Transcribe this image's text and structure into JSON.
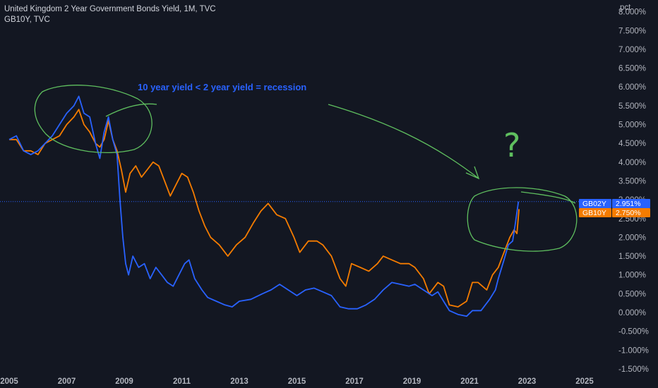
{
  "header": {
    "title": "United Kingdom 2 Year Government Bonds Yield, 1M, TVC",
    "subtitle": "GB10Y, TVC"
  },
  "colors": {
    "background": "#131722",
    "gb02y": "#2962ff",
    "gb10y": "#f57c00",
    "annotation_green": "#5fbf5f",
    "grid": "#1e222d",
    "axis_text": "#b2b5be"
  },
  "chart_data": {
    "type": "line",
    "ylabel": "pct",
    "ylim": [
      -1.6,
      8.2
    ],
    "xlim": [
      2005.0,
      2026.0
    ],
    "grid": false,
    "y_ticks": [
      "-1.500%",
      "-1.000%",
      "-0.500%",
      "0.000%",
      "0.500%",
      "1.000%",
      "1.500%",
      "2.000%",
      "2.500%",
      "3.000%",
      "3.500%",
      "4.000%",
      "4.500%",
      "5.000%",
      "5.500%",
      "6.000%",
      "6.500%",
      "7.000%",
      "7.500%",
      "8.000%"
    ],
    "y_tick_values": [
      -1.5,
      -1.0,
      -0.5,
      0.0,
      0.5,
      1.0,
      1.5,
      2.0,
      2.5,
      3.0,
      3.5,
      4.0,
      4.5,
      5.0,
      5.5,
      6.0,
      6.5,
      7.0,
      7.5,
      8.0
    ],
    "x_ticks": [
      "2005",
      "2007",
      "2009",
      "2011",
      "2013",
      "2015",
      "2017",
      "2019",
      "2021",
      "2023",
      "2025"
    ],
    "x_tick_values": [
      2005,
      2007,
      2009,
      2011,
      2013,
      2015,
      2017,
      2019,
      2021,
      2023,
      2025
    ],
    "series": [
      {
        "name": "GB02Y",
        "last_label": "2.951%",
        "points": [
          [
            2005.0,
            4.6
          ],
          [
            2005.25,
            4.7
          ],
          [
            2005.5,
            4.3
          ],
          [
            2005.75,
            4.2
          ],
          [
            2006.0,
            4.3
          ],
          [
            2006.25,
            4.5
          ],
          [
            2006.5,
            4.7
          ],
          [
            2006.75,
            5.0
          ],
          [
            2007.0,
            5.3
          ],
          [
            2007.25,
            5.5
          ],
          [
            2007.42,
            5.75
          ],
          [
            2007.6,
            5.3
          ],
          [
            2007.8,
            5.2
          ],
          [
            2008.0,
            4.5
          ],
          [
            2008.15,
            4.1
          ],
          [
            2008.3,
            4.8
          ],
          [
            2008.45,
            5.2
          ],
          [
            2008.6,
            4.6
          ],
          [
            2008.75,
            4.2
          ],
          [
            2008.85,
            3.0
          ],
          [
            2008.95,
            2.0
          ],
          [
            2009.05,
            1.3
          ],
          [
            2009.15,
            1.0
          ],
          [
            2009.3,
            1.5
          ],
          [
            2009.5,
            1.2
          ],
          [
            2009.7,
            1.3
          ],
          [
            2009.9,
            0.9
          ],
          [
            2010.1,
            1.2
          ],
          [
            2010.3,
            1.0
          ],
          [
            2010.5,
            0.8
          ],
          [
            2010.7,
            0.7
          ],
          [
            2010.9,
            1.0
          ],
          [
            2011.1,
            1.3
          ],
          [
            2011.25,
            1.4
          ],
          [
            2011.45,
            0.9
          ],
          [
            2011.7,
            0.6
          ],
          [
            2011.9,
            0.4
          ],
          [
            2012.2,
            0.3
          ],
          [
            2012.5,
            0.2
          ],
          [
            2012.75,
            0.15
          ],
          [
            2013.0,
            0.3
          ],
          [
            2013.4,
            0.35
          ],
          [
            2013.8,
            0.5
          ],
          [
            2014.1,
            0.6
          ],
          [
            2014.4,
            0.75
          ],
          [
            2014.7,
            0.6
          ],
          [
            2015.0,
            0.45
          ],
          [
            2015.3,
            0.6
          ],
          [
            2015.6,
            0.65
          ],
          [
            2015.9,
            0.55
          ],
          [
            2016.2,
            0.45
          ],
          [
            2016.5,
            0.15
          ],
          [
            2016.8,
            0.1
          ],
          [
            2017.1,
            0.1
          ],
          [
            2017.4,
            0.2
          ],
          [
            2017.7,
            0.35
          ],
          [
            2018.0,
            0.6
          ],
          [
            2018.3,
            0.8
          ],
          [
            2018.6,
            0.75
          ],
          [
            2018.9,
            0.7
          ],
          [
            2019.1,
            0.75
          ],
          [
            2019.4,
            0.6
          ],
          [
            2019.7,
            0.45
          ],
          [
            2019.9,
            0.55
          ],
          [
            2020.1,
            0.3
          ],
          [
            2020.3,
            0.05
          ],
          [
            2020.6,
            -0.05
          ],
          [
            2020.9,
            -0.1
          ],
          [
            2021.1,
            0.05
          ],
          [
            2021.4,
            0.05
          ],
          [
            2021.7,
            0.35
          ],
          [
            2021.9,
            0.6
          ],
          [
            2022.0,
            0.9
          ],
          [
            2022.2,
            1.4
          ],
          [
            2022.35,
            1.8
          ],
          [
            2022.5,
            1.9
          ],
          [
            2022.6,
            2.4
          ],
          [
            2022.7,
            2.951
          ]
        ]
      },
      {
        "name": "GB10Y",
        "last_label": "2.750%",
        "points": [
          [
            2005.0,
            4.6
          ],
          [
            2005.25,
            4.6
          ],
          [
            2005.5,
            4.3
          ],
          [
            2005.75,
            4.3
          ],
          [
            2006.0,
            4.2
          ],
          [
            2006.25,
            4.5
          ],
          [
            2006.5,
            4.6
          ],
          [
            2006.75,
            4.7
          ],
          [
            2007.0,
            5.0
          ],
          [
            2007.25,
            5.2
          ],
          [
            2007.42,
            5.4
          ],
          [
            2007.6,
            5.0
          ],
          [
            2007.8,
            4.8
          ],
          [
            2008.0,
            4.5
          ],
          [
            2008.15,
            4.4
          ],
          [
            2008.3,
            4.6
          ],
          [
            2008.45,
            5.1
          ],
          [
            2008.6,
            4.6
          ],
          [
            2008.75,
            4.3
          ],
          [
            2008.9,
            3.8
          ],
          [
            2009.05,
            3.2
          ],
          [
            2009.2,
            3.7
          ],
          [
            2009.4,
            3.9
          ],
          [
            2009.6,
            3.6
          ],
          [
            2009.8,
            3.8
          ],
          [
            2010.0,
            4.0
          ],
          [
            2010.2,
            3.9
          ],
          [
            2010.4,
            3.5
          ],
          [
            2010.6,
            3.1
          ],
          [
            2010.8,
            3.4
          ],
          [
            2011.0,
            3.7
          ],
          [
            2011.2,
            3.6
          ],
          [
            2011.4,
            3.2
          ],
          [
            2011.6,
            2.7
          ],
          [
            2011.8,
            2.3
          ],
          [
            2012.0,
            2.0
          ],
          [
            2012.3,
            1.8
          ],
          [
            2012.6,
            1.5
          ],
          [
            2012.9,
            1.8
          ],
          [
            2013.2,
            2.0
          ],
          [
            2013.5,
            2.4
          ],
          [
            2013.75,
            2.7
          ],
          [
            2014.0,
            2.9
          ],
          [
            2014.3,
            2.6
          ],
          [
            2014.6,
            2.5
          ],
          [
            2014.9,
            2.0
          ],
          [
            2015.1,
            1.6
          ],
          [
            2015.4,
            1.9
          ],
          [
            2015.7,
            1.9
          ],
          [
            2015.9,
            1.8
          ],
          [
            2016.2,
            1.5
          ],
          [
            2016.5,
            0.9
          ],
          [
            2016.7,
            0.7
          ],
          [
            2016.9,
            1.3
          ],
          [
            2017.2,
            1.2
          ],
          [
            2017.5,
            1.1
          ],
          [
            2017.8,
            1.3
          ],
          [
            2018.0,
            1.5
          ],
          [
            2018.3,
            1.4
          ],
          [
            2018.6,
            1.3
          ],
          [
            2018.9,
            1.3
          ],
          [
            2019.1,
            1.2
          ],
          [
            2019.4,
            0.9
          ],
          [
            2019.6,
            0.5
          ],
          [
            2019.9,
            0.8
          ],
          [
            2020.1,
            0.7
          ],
          [
            2020.3,
            0.2
          ],
          [
            2020.6,
            0.15
          ],
          [
            2020.9,
            0.3
          ],
          [
            2021.1,
            0.8
          ],
          [
            2021.3,
            0.8
          ],
          [
            2021.6,
            0.6
          ],
          [
            2021.8,
            1.0
          ],
          [
            2022.0,
            1.2
          ],
          [
            2022.2,
            1.6
          ],
          [
            2022.4,
            2.0
          ],
          [
            2022.55,
            2.2
          ],
          [
            2022.65,
            2.1
          ],
          [
            2022.72,
            2.75
          ]
        ]
      }
    ],
    "annotations": [
      "10 year yield < 2 year yield = recession",
      "?"
    ]
  }
}
